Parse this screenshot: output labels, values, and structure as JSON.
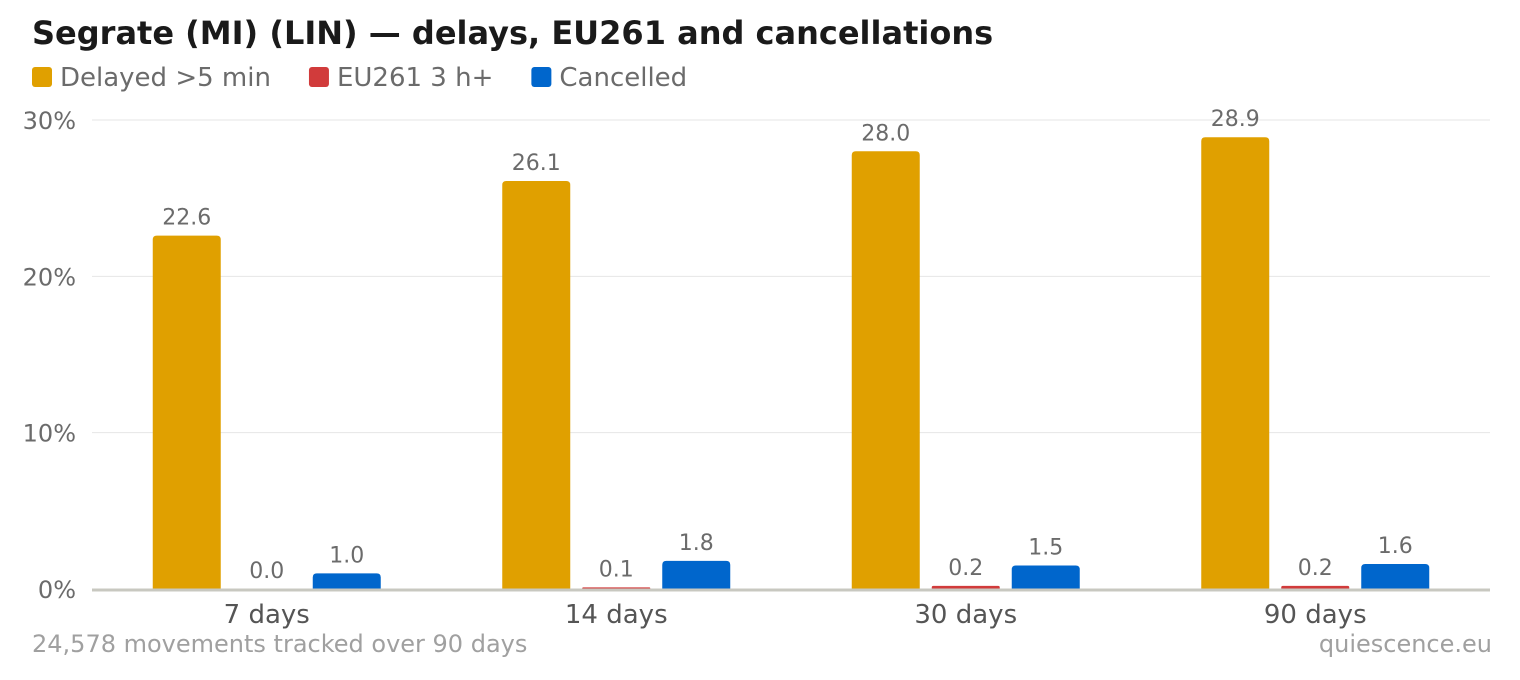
{
  "title": "Segrate (MI) (LIN) — delays, EU261 and cancellations",
  "footer": {
    "note": "24,578 movements tracked over 90 days",
    "source": "quiescence.eu"
  },
  "chart_data": {
    "type": "bar",
    "title": "Segrate (MI) (LIN) — delays, EU261 and cancellations",
    "categories": [
      "7 days",
      "14 days",
      "30 days",
      "90 days"
    ],
    "series": [
      {
        "name": "Delayed >5 min",
        "color": "#e0a000",
        "values": [
          22.6,
          26.1,
          28.0,
          28.9
        ],
        "labels": [
          "22.6",
          "26.1",
          "28.0",
          "28.9"
        ]
      },
      {
        "name": "EU261 3 h+",
        "color": "#d13b3b",
        "values": [
          0.0,
          0.1,
          0.2,
          0.2
        ],
        "labels": [
          "0.0",
          "0.1",
          "0.2",
          "0.2"
        ]
      },
      {
        "name": "Cancelled",
        "color": "#0066cc",
        "values": [
          1.0,
          1.8,
          1.5,
          1.6
        ],
        "labels": [
          "1.0",
          "1.8",
          "1.5",
          "1.6"
        ]
      }
    ],
    "yticks": [
      0,
      10,
      20,
      30
    ],
    "ytick_labels": [
      "0%",
      "10%",
      "20%",
      "30%"
    ],
    "ylim": [
      0,
      30
    ],
    "xlabel": "",
    "ylabel": "",
    "grid": true,
    "legend_position": "top-left"
  }
}
